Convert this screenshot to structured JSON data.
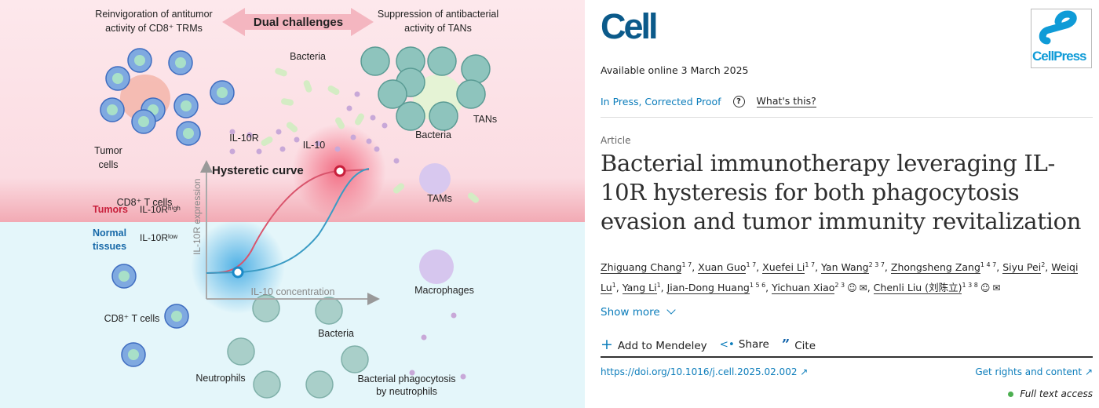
{
  "figure": {
    "top_left_title": [
      "Reinvigoration of antitumor",
      "activity of CD8⁺ TRMs"
    ],
    "top_center": "Dual challenges",
    "top_right_title": [
      "Suppression of antibacterial",
      "activity of TANs"
    ],
    "labels": {
      "bacteria_top": "Bacteria",
      "tumor_cells": [
        "Tumor",
        "cells"
      ],
      "cd8_t_cells_top": "CD8⁺ T cells",
      "il10r": "IL-10R",
      "il10": "IL-10",
      "tans": "TANs",
      "bacteria_tans": "Bacteria",
      "tams": "TAMs",
      "hysteretic_curve": "Hysteretic curve",
      "tumors": "Tumors",
      "il10r_high": "IL-10Rʰⁱᵍʰ",
      "normal_tissues": [
        "Normal",
        "tissues"
      ],
      "il10r_low": "IL-10Rˡᵒʷ",
      "y_axis": "IL-10R expression",
      "x_axis": "IL-10 concentration",
      "macrophages": "Macrophages",
      "cd8_t_cells_bottom": "CD8⁺ T cells",
      "bacteria_bottom": "Bacteria",
      "neutrophils": "Neutrophils",
      "phagocytosis": [
        "Bacterial phagocytosis",
        "by neutrophils"
      ]
    },
    "colors": {
      "tumor_bg": "#fde4e8",
      "normal_bg": "#e3f5fa",
      "red_curve": "#d9546c",
      "blue_curve": "#3a9bc4"
    }
  },
  "journal": {
    "logo": "Cell",
    "publisher_logo": "CellPress"
  },
  "available_online": "Available online 3 March 2025",
  "status": {
    "label": "In Press, Corrected Proof",
    "help_icon": "question-circle-icon",
    "whats_this": "What's this?"
  },
  "article_type": "Article",
  "title": "Bacterial immunotherapy leveraging IL-10R hysteresis for both phagocytosis evasion and tumor immunity revitalization",
  "authors": [
    {
      "name": "Zhiguang Chang",
      "sup": "1 7"
    },
    {
      "name": "Xuan Guo",
      "sup": "1 7"
    },
    {
      "name": "Xuefei Li",
      "sup": "1 7"
    },
    {
      "name": "Yan Wang",
      "sup": "2 3 7"
    },
    {
      "name": "Zhongsheng Zang",
      "sup": "1 4 7"
    },
    {
      "name": "Siyu Pei",
      "sup": "2"
    },
    {
      "name": "Weiqi Lu",
      "sup": "1"
    },
    {
      "name": "Yang Li",
      "sup": "1"
    },
    {
      "name": "Jian-Dong Huang",
      "sup": "1 5 6"
    },
    {
      "name": "Yichuan Xiao",
      "sup": "2 3",
      "icons": true
    },
    {
      "name": "Chenli Liu (刘陈立)",
      "sup": "1 3 8",
      "icons": true
    }
  ],
  "show_more": "Show more",
  "actions": {
    "mendeley": "Add to Mendeley",
    "share": "Share",
    "cite": "Cite"
  },
  "doi": "https://doi.org/10.1016/j.cell.2025.02.002",
  "rights": "Get rights and content",
  "access": "Full text access"
}
